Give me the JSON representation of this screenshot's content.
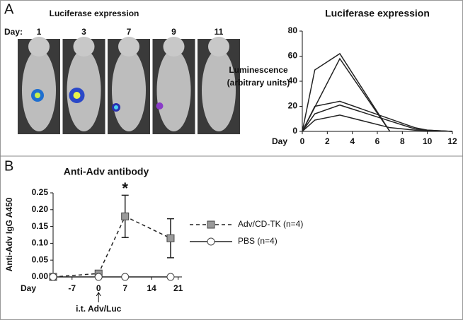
{
  "panel_labels": [
    "A",
    "B"
  ],
  "images": {
    "title": "Luciferase expression",
    "day_label": "Day:",
    "days": [
      "1",
      "3",
      "7",
      "9",
      "11"
    ]
  },
  "chart_data": [
    {
      "type": "line",
      "title": "Luciferase expression",
      "y_label": [
        "Luminescence",
        "(arbitrary units)"
      ],
      "x_label": "Day",
      "xlim": [
        0,
        12
      ],
      "xticks": [
        0,
        2,
        4,
        6,
        8,
        10,
        12
      ],
      "ylim": [
        0,
        80
      ],
      "yticks": [
        0,
        20,
        40,
        60,
        80
      ],
      "series": [
        {
          "color": "#222222",
          "x": [
            0,
            1,
            3,
            7
          ],
          "values": [
            0,
            49,
            62,
            0
          ]
        },
        {
          "color": "#222222",
          "x": [
            0,
            3,
            7
          ],
          "values": [
            0,
            58,
            0
          ]
        },
        {
          "color": "#222222",
          "x": [
            0,
            1,
            3,
            9,
            10,
            12
          ],
          "values": [
            0,
            20,
            24,
            3,
            1,
            0
          ]
        },
        {
          "color": "#222222",
          "x": [
            0,
            1,
            3,
            9,
            10,
            12
          ],
          "values": [
            0,
            14,
            21,
            2,
            1,
            0
          ]
        },
        {
          "color": "#222222",
          "x": [
            0,
            1,
            3,
            7,
            9,
            12
          ],
          "values": [
            0,
            9,
            13,
            3,
            1,
            0
          ]
        }
      ]
    },
    {
      "type": "line",
      "title": "Anti-Adv antibody",
      "y_label": [
        "Anti-Adv IgG A450"
      ],
      "x_label": "Day",
      "xlim": [
        -12,
        22
      ],
      "xticks": [
        -7,
        0,
        7,
        14,
        21
      ],
      "ylim": [
        0,
        0.25
      ],
      "yticks": [
        {
          "value": 0,
          "label": "0.00"
        },
        {
          "value": 0.05,
          "label": "0.05"
        },
        {
          "value": 0.1,
          "label": "0.10"
        },
        {
          "value": 0.15,
          "label": "0.15"
        },
        {
          "value": 0.2,
          "label": "0.20"
        },
        {
          "value": 0.25,
          "label": "0.25"
        }
      ],
      "annotations": [
        "*",
        "i.t. Adv/Luc"
      ],
      "legend": "right",
      "series": [
        {
          "name": "Adv/CD-TK (n=4)",
          "color": "#222222",
          "marker_color": "#9a9a9a",
          "marker": "square",
          "dashed": true,
          "x": [
            -12,
            0,
            7,
            19
          ],
          "values": [
            0,
            0.01,
            0.18,
            0.115
          ],
          "errors": [
            0,
            0.005,
            0.063,
            0.058
          ]
        },
        {
          "name": "PBS (n=4)",
          "color": "#222222",
          "marker_color": "#ffffff",
          "marker": "circle",
          "dashed": false,
          "x": [
            -12,
            0,
            7,
            19
          ],
          "values": [
            0,
            0,
            0,
            0
          ]
        }
      ]
    }
  ]
}
